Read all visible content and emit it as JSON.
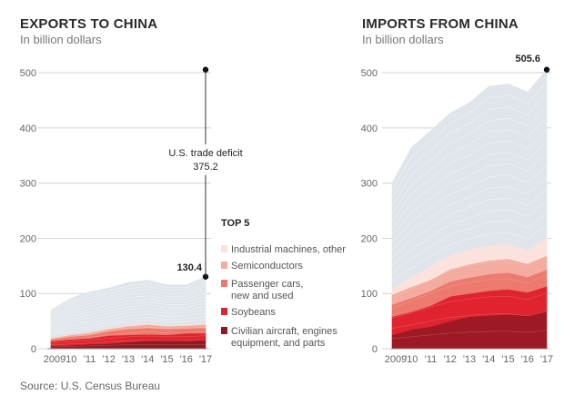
{
  "source": "Source: U.S. Census Bureau",
  "chart_data": [
    {
      "type": "area",
      "title": "EXPORTS TO CHINA",
      "subtitle": "In billion dollars",
      "x": [
        "2009",
        "'10",
        "'11",
        "'12",
        "'13",
        "'14",
        "'15",
        "'16",
        "'17"
      ],
      "ylim": [
        0,
        520
      ],
      "yticks": [
        0,
        100,
        200,
        300,
        400,
        500
      ],
      "series": [
        {
          "name": "Civilian aircraft, engines equipment, and parts",
          "color": "#8e1b23",
          "values": [
            5,
            6,
            8,
            9,
            12,
            14,
            15,
            14,
            16
          ]
        },
        {
          "name": "Soybeans",
          "color": "#e0242f",
          "values": [
            9,
            11,
            11,
            15,
            13,
            12,
            10,
            14,
            12
          ]
        },
        {
          "name": "Passenger cars, new and used",
          "color": "#ec7a6e",
          "values": [
            3,
            5,
            6,
            8,
            11,
            12,
            11,
            9,
            10
          ]
        },
        {
          "name": "Semiconductors",
          "color": "#f3ac9f",
          "values": [
            2,
            3,
            4,
            4,
            5,
            6,
            5,
            5,
            6
          ]
        },
        {
          "name": "Industrial machines, other",
          "color": "#fbe2dc",
          "values": [
            1,
            1,
            1,
            2,
            2,
            2,
            2,
            2,
            3
          ]
        },
        {
          "name": "",
          "color": "#dfe5eb",
          "values": [
            50,
            65,
            73,
            72,
            77,
            78,
            73,
            72,
            83.4
          ]
        }
      ],
      "total_label": "130.4",
      "deficit_label": "U.S. trade deficit",
      "deficit_value": "375.2",
      "deficit_from": 130.4,
      "deficit_to": 505.6,
      "legend_title": "TOP 5"
    },
    {
      "type": "area",
      "title": "IMPORTS FROM CHINA",
      "subtitle": "In billion dollars",
      "x": [
        "2009",
        "'10",
        "'11",
        "'12",
        "'13",
        "'14",
        "'15",
        "'16",
        "'17"
      ],
      "ylim": [
        0,
        520
      ],
      "yticks": [
        0,
        100,
        200,
        300,
        400,
        500
      ],
      "series": [
        {
          "name": "",
          "color": "#9d1a24",
          "values": [
            25,
            35,
            40,
            50,
            58,
            60,
            62,
            60,
            68
          ]
        },
        {
          "name": "",
          "color": "#e0242f",
          "values": [
            33,
            32,
            38,
            45,
            42,
            45,
            46,
            42,
            45
          ]
        },
        {
          "name": "",
          "color": "#ec7a6e",
          "values": [
            22,
            25,
            27,
            27,
            29,
            30,
            30,
            28,
            30
          ]
        },
        {
          "name": "",
          "color": "#f3ac9f",
          "values": [
            18,
            20,
            20,
            22,
            24,
            25,
            25,
            24,
            26
          ]
        },
        {
          "name": "",
          "color": "#fbe2dc",
          "values": [
            12,
            18,
            25,
            26,
            27,
            28,
            27,
            24,
            33
          ]
        },
        {
          "name": "",
          "color": "#dfe5eb",
          "values": [
            190,
            235,
            245,
            257,
            266,
            287,
            290,
            287,
            303.6
          ]
        }
      ],
      "total_label": "505.6"
    }
  ]
}
